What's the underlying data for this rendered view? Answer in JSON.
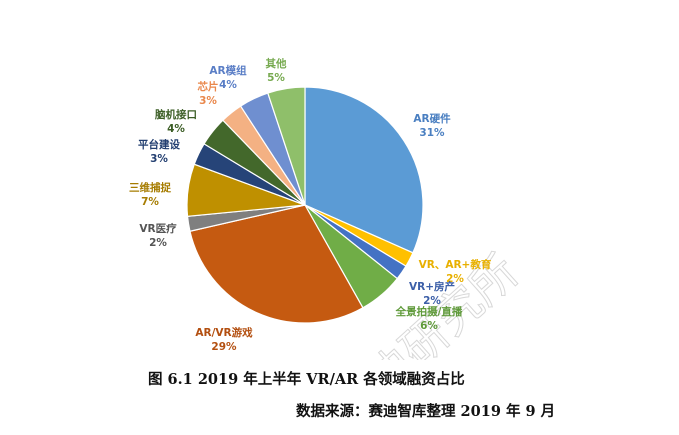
{
  "chart_data": {
    "type": "pie",
    "start_angle_deg": 0,
    "direction": "clockwise",
    "slices": [
      {
        "name": "AR硬件",
        "value": 31,
        "label": "31%",
        "color": "#5b9bd5",
        "label_color": "#4a7fc1"
      },
      {
        "name": "VR、AR+教育",
        "value": 2,
        "label": "2%",
        "color": "#ffc000",
        "label_color": "#e8b000"
      },
      {
        "name": "VR+房产",
        "value": 2,
        "label": "2%",
        "color": "#4472c4",
        "label_color": "#3c5fa8"
      },
      {
        "name": "全景拍摄/直播",
        "value": 6,
        "label": "6%",
        "color": "#70ad47",
        "label_color": "#5f9a3a"
      },
      {
        "name": "AR/VR游戏",
        "value": 29,
        "label": "29%",
        "color": "#c55a11",
        "label_color": "#b34f10"
      },
      {
        "name": "VR医疗",
        "value": 2,
        "label": "2%",
        "color": "#7f7f7f",
        "label_color": "#555555"
      },
      {
        "name": "三维捕捉",
        "value": 7,
        "label": "7%",
        "color": "#bf9000",
        "label_color": "#a67c00"
      },
      {
        "name": "平台建设",
        "value": 3,
        "label": "3%",
        "color": "#264478",
        "label_color": "#223e70"
      },
      {
        "name": "脑机接口",
        "value": 4,
        "label": "4%",
        "color": "#43682b",
        "label_color": "#3b5d25"
      },
      {
        "name": "芯片",
        "value": 3,
        "label": "3%",
        "color": "#f4b183",
        "label_color": "#e9874b"
      },
      {
        "name": "AR模组",
        "value": 4,
        "label": "4%",
        "color": "#6f8fd0",
        "label_color": "#5a7ec6"
      },
      {
        "name": "其他",
        "value": 5,
        "label": "5%",
        "color": "#8fbf6a",
        "label_color": "#77aa50"
      }
    ]
  },
  "caption": "图 6.1 2019 年上半年 VR/AR 各领域融资占比",
  "source": "数据来源：赛迪智库整理  2019 年 9 月",
  "watermark": "赛迪研究所"
}
